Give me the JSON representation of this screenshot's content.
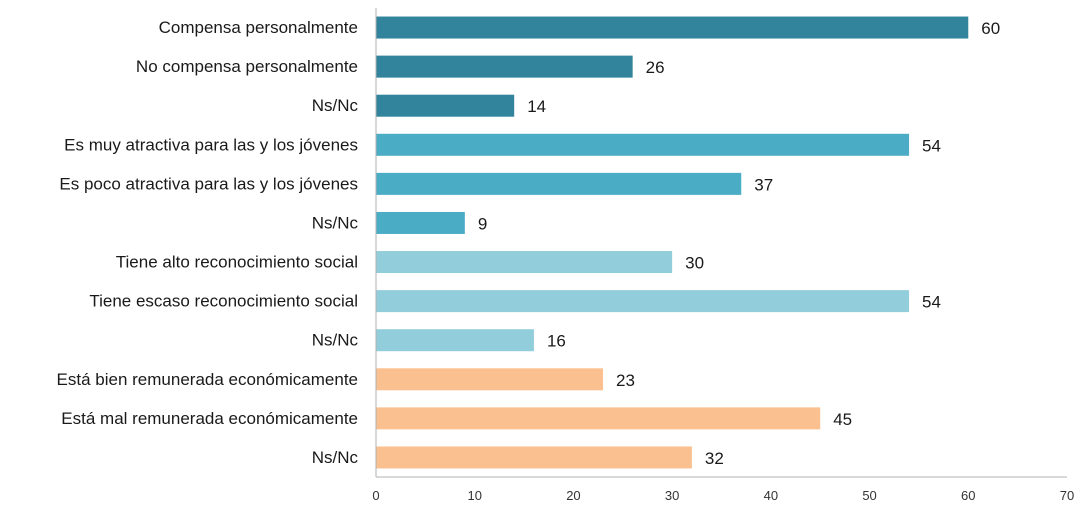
{
  "chart_data": {
    "type": "bar",
    "orientation": "horizontal",
    "title": "",
    "xlabel": "",
    "ylabel": "",
    "xlim": [
      0,
      70
    ],
    "xticks": [
      0,
      10,
      20,
      30,
      40,
      50,
      60,
      70
    ],
    "grid": false,
    "legend": "none",
    "bars": [
      {
        "label": "Compensa personalmente",
        "value": 60,
        "color": "#31849B"
      },
      {
        "label": "No compensa personalmente",
        "value": 26,
        "color": "#31849B"
      },
      {
        "label": "Ns/Nc",
        "value": 14,
        "color": "#31849B"
      },
      {
        "label": "Es muy atractiva para las y los jóvenes",
        "value": 54,
        "color": "#4BACC6"
      },
      {
        "label": "Es poco atractiva para las y los jóvenes",
        "value": 37,
        "color": "#4BACC6"
      },
      {
        "label": "Ns/Nc",
        "value": 9,
        "color": "#4BACC6"
      },
      {
        "label": "Tiene alto reconocimiento social",
        "value": 30,
        "color": "#92CDDC"
      },
      {
        "label": "Tiene escaso reconocimiento social",
        "value": 54,
        "color": "#92CDDC"
      },
      {
        "label": "Ns/Nc",
        "value": 16,
        "color": "#92CDDC"
      },
      {
        "label": "Está bien remunerada económicamente",
        "value": 23,
        "color": "#FAC090"
      },
      {
        "label": "Está mal remunerada económicamente",
        "value": 45,
        "color": "#FAC090"
      },
      {
        "label": "Ns/Nc",
        "value": 32,
        "color": "#FAC090"
      }
    ]
  }
}
